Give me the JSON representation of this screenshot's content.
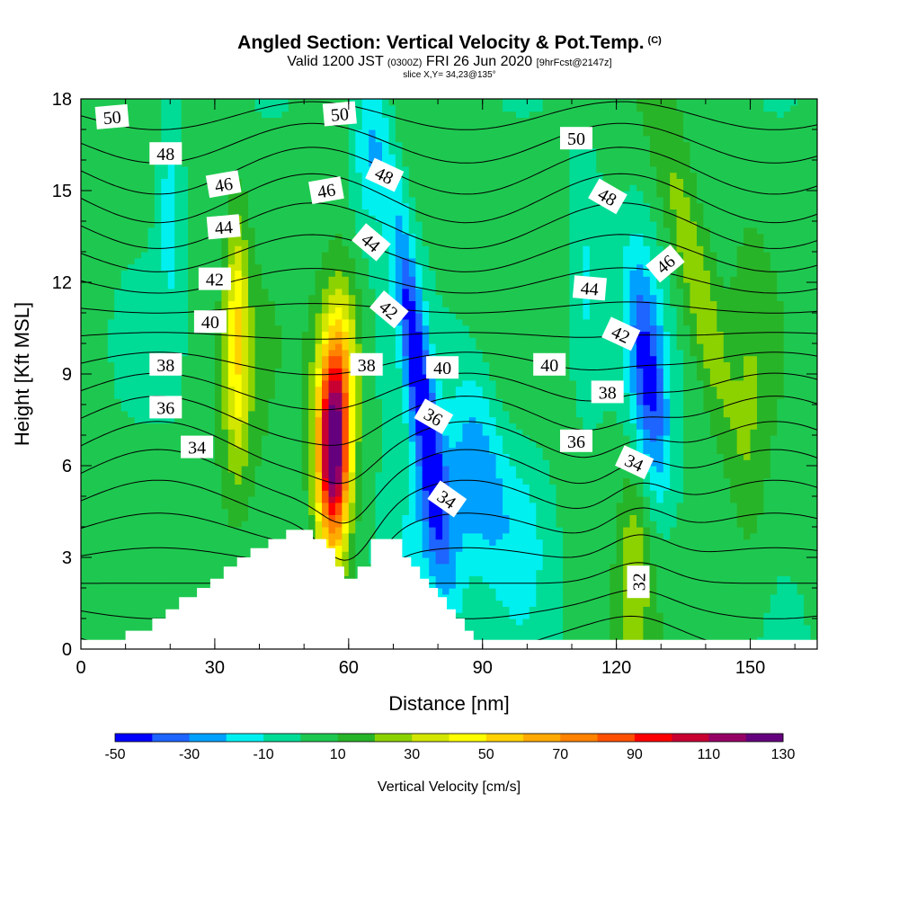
{
  "title": {
    "main": "Angled Section: Vertical Velocity & Pot.Temp.",
    "main_mark": "(C)",
    "valid_a": "Valid 1200 JST",
    "valid_b": "(0300Z)",
    "valid_c": "FRI 26 Jun 2020",
    "valid_d": "[9hrFcst@2147z]",
    "slice": "slice X,Y= 34,23@135°"
  },
  "chart_data": {
    "type": "heatmap",
    "xlabel": "Distance [nm]",
    "ylabel": "Height [Kft MSL]",
    "xlim": [
      0,
      165
    ],
    "ylim": [
      0,
      18
    ],
    "x_ticks": [
      0,
      30,
      60,
      90,
      120,
      150
    ],
    "y_ticks": [
      0,
      3,
      6,
      9,
      12,
      15,
      18
    ],
    "grid": false,
    "colorbar": {
      "title": "Vertical Velocity [cm/s]",
      "placement": "bottom",
      "levels": [
        -50,
        -40,
        -30,
        -20,
        -10,
        0,
        10,
        20,
        30,
        40,
        50,
        60,
        70,
        80,
        90,
        100,
        110,
        120,
        130
      ],
      "labels": [
        "-50",
        "-30",
        "-10",
        "10",
        "30",
        "50",
        "70",
        "90",
        "110",
        "130"
      ],
      "colors": [
        "#0000ff",
        "#1e64ff",
        "#00a0ff",
        "#00f0f0",
        "#00dc96",
        "#1ec850",
        "#28b428",
        "#8cd200",
        "#d2e600",
        "#ffff00",
        "#ffd200",
        "#ffaa00",
        "#ff8200",
        "#ff5000",
        "#ff0000",
        "#c80032",
        "#960064",
        "#64007d"
      ]
    },
    "terrain_kft": [
      [
        0,
        0.3
      ],
      [
        10,
        0.3
      ],
      [
        10,
        0.6
      ],
      [
        16,
        0.6
      ],
      [
        16,
        1.0
      ],
      [
        19,
        1.0
      ],
      [
        19,
        1.3
      ],
      [
        22,
        1.3
      ],
      [
        22,
        1.7
      ],
      [
        26,
        1.7
      ],
      [
        26,
        2.0
      ],
      [
        29,
        2.0
      ],
      [
        29,
        2.3
      ],
      [
        32,
        2.3
      ],
      [
        32,
        2.7
      ],
      [
        35,
        2.7
      ],
      [
        35,
        3.0
      ],
      [
        38,
        3.0
      ],
      [
        38,
        3.3
      ],
      [
        42,
        3.3
      ],
      [
        42,
        3.6
      ],
      [
        46,
        3.6
      ],
      [
        46,
        3.9
      ],
      [
        52,
        3.9
      ],
      [
        52,
        3.6
      ],
      [
        55,
        3.6
      ],
      [
        55,
        3.3
      ],
      [
        57,
        3.3
      ],
      [
        57,
        2.7
      ],
      [
        59,
        2.7
      ],
      [
        59,
        2.3
      ],
      [
        62,
        2.3
      ],
      [
        62,
        2.7
      ],
      [
        65,
        2.7
      ],
      [
        65,
        3.6
      ],
      [
        72,
        3.6
      ],
      [
        72,
        3.0
      ],
      [
        74,
        3.0
      ],
      [
        74,
        2.7
      ],
      [
        76,
        2.7
      ],
      [
        76,
        2.3
      ],
      [
        78,
        2.3
      ],
      [
        78,
        2.0
      ],
      [
        80,
        2.0
      ],
      [
        80,
        1.7
      ],
      [
        82,
        1.7
      ],
      [
        82,
        1.3
      ],
      [
        84,
        1.3
      ],
      [
        84,
        1.0
      ],
      [
        86,
        1.0
      ],
      [
        86,
        0.6
      ],
      [
        88,
        0.6
      ],
      [
        88,
        0.3
      ],
      [
        165,
        0.3
      ]
    ],
    "theta_levels": [
      31,
      32,
      33,
      34,
      35,
      36,
      37,
      38,
      39,
      40,
      41,
      42,
      43,
      44,
      45,
      46,
      47,
      48,
      49,
      50,
      51,
      52
    ],
    "theta_labels": [
      {
        "text": "50",
        "x": 7,
        "y": 17.4,
        "rot": -5
      },
      {
        "text": "48",
        "x": 19,
        "y": 16.2,
        "rot": 0
      },
      {
        "text": "46",
        "x": 32,
        "y": 15.2,
        "rot": -10
      },
      {
        "text": "44",
        "x": 32,
        "y": 13.8,
        "rot": -5
      },
      {
        "text": "42",
        "x": 30,
        "y": 12.1,
        "rot": 0
      },
      {
        "text": "40",
        "x": 29,
        "y": 10.7,
        "rot": 0
      },
      {
        "text": "38",
        "x": 19,
        "y": 9.3,
        "rot": 0
      },
      {
        "text": "36",
        "x": 19,
        "y": 7.9,
        "rot": 0
      },
      {
        "text": "34",
        "x": 26,
        "y": 6.6,
        "rot": 0
      },
      {
        "text": "50",
        "x": 58,
        "y": 17.5,
        "rot": -5
      },
      {
        "text": "46",
        "x": 55,
        "y": 15.0,
        "rot": -10
      },
      {
        "text": "48",
        "x": 68,
        "y": 15.5,
        "rot": 25
      },
      {
        "text": "44",
        "x": 65,
        "y": 13.3,
        "rot": 40
      },
      {
        "text": "42",
        "x": 69,
        "y": 11.1,
        "rot": 40
      },
      {
        "text": "38",
        "x": 64,
        "y": 9.3,
        "rot": 0
      },
      {
        "text": "40",
        "x": 81,
        "y": 9.2,
        "rot": 0
      },
      {
        "text": "36",
        "x": 79,
        "y": 7.6,
        "rot": 30
      },
      {
        "text": "34",
        "x": 82,
        "y": 4.9,
        "rot": 35
      },
      {
        "text": "50",
        "x": 111,
        "y": 16.7,
        "rot": 0
      },
      {
        "text": "48",
        "x": 118,
        "y": 14.8,
        "rot": 30
      },
      {
        "text": "46",
        "x": 131,
        "y": 12.6,
        "rot": -40
      },
      {
        "text": "44",
        "x": 114,
        "y": 11.8,
        "rot": 5
      },
      {
        "text": "42",
        "x": 121,
        "y": 10.3,
        "rot": 25
      },
      {
        "text": "40",
        "x": 105,
        "y": 9.3,
        "rot": 0
      },
      {
        "text": "38",
        "x": 118,
        "y": 8.4,
        "rot": 0
      },
      {
        "text": "36",
        "x": 111,
        "y": 6.8,
        "rot": 0
      },
      {
        "text": "34",
        "x": 124,
        "y": 6.1,
        "rot": 25
      },
      {
        "text": "32",
        "x": 125,
        "y": 2.2,
        "rot": -90
      }
    ]
  }
}
